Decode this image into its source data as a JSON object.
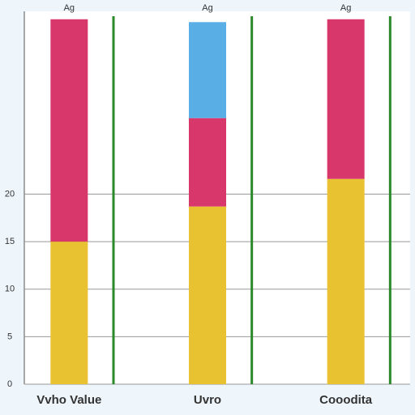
{
  "chart_data": {
    "type": "stacked-bar",
    "top_labels": [
      "Ag",
      "Ag",
      "Ag"
    ],
    "categories": [
      "Vvho Value",
      "Uvro",
      "Cooodita"
    ],
    "series": [
      {
        "color": "#e9c232",
        "values": [
          15,
          18.7,
          21.6
        ]
      },
      {
        "color": "#d8376c",
        "values": [
          23.4,
          9.3,
          16.8
        ]
      },
      {
        "color": "#5aaee6",
        "values": [
          0,
          10.1,
          0
        ]
      }
    ],
    "ylim": [
      0,
      40
    ],
    "yticks": [
      0,
      5,
      10,
      15,
      20
    ],
    "grid": true
  }
}
